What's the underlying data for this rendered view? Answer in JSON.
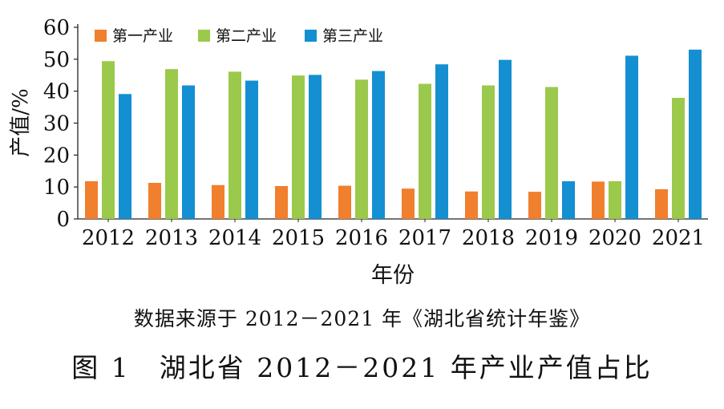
{
  "chart_data": {
    "type": "bar",
    "ylabel": "产值/%",
    "xlabel": "年份",
    "ylim": [
      0,
      60
    ],
    "yticks": [
      0,
      10,
      20,
      30,
      40,
      50,
      60
    ],
    "grid": false,
    "legend_position": "top-left",
    "categories": [
      "2012",
      "2013",
      "2014",
      "2015",
      "2016",
      "2017",
      "2018",
      "2019",
      "2020",
      "2021"
    ],
    "series": [
      {
        "name": "第一产业",
        "color": "#f07f2e",
        "values": [
          11.8,
          11.3,
          10.6,
          10.3,
          10.4,
          9.5,
          8.6,
          8.5,
          11.7,
          9.3
        ]
      },
      {
        "name": "第二产业",
        "color": "#9bc94b",
        "values": [
          49.4,
          46.9,
          46.1,
          44.9,
          43.6,
          42.3,
          41.8,
          41.3,
          11.8,
          37.9
        ]
      },
      {
        "name": "第三产业",
        "color": "#148fd1",
        "values": [
          39.1,
          41.8,
          43.3,
          45.1,
          46.3,
          48.4,
          49.8,
          11.8,
          51.1,
          53.0
        ]
      }
    ]
  },
  "captions": {
    "source": "数据来源于 2012－2021 年《湖北省统计年鉴》",
    "figure_title": "图 1　湖北省 2012－2021 年产业产值占比"
  }
}
